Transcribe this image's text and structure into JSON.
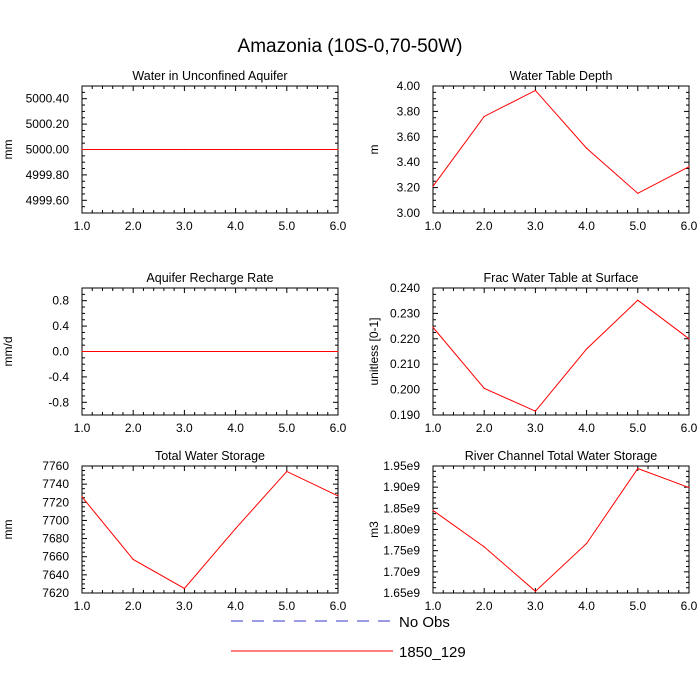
{
  "title": "Amazonia (10S-0,70-50W)",
  "chart_data": [
    {
      "type": "line",
      "title": "Water in Unconfined Aquifer",
      "ylabel": "mm",
      "xlim": [
        1.0,
        6.0
      ],
      "ylim": [
        4999.5,
        5000.5
      ],
      "xticks": [
        "1.0",
        "2.0",
        "3.0",
        "4.0",
        "5.0",
        "6.0"
      ],
      "yticks": [
        {
          "v": 4999.6,
          "label": "4999.60"
        },
        {
          "v": 4999.8,
          "label": "4999.80"
        },
        {
          "v": 5000.0,
          "label": "5000.00"
        },
        {
          "v": 5000.2,
          "label": "5000.20"
        },
        {
          "v": 5000.4,
          "label": "5000.40"
        }
      ],
      "x": [
        1,
        2,
        3,
        4,
        5,
        6
      ],
      "series": [
        {
          "name": "1850_129",
          "values": [
            5000.0,
            5000.0,
            5000.0,
            5000.0,
            5000.0,
            5000.0
          ]
        }
      ]
    },
    {
      "type": "line",
      "title": "Water Table Depth",
      "ylabel": "m",
      "xlim": [
        1.0,
        6.0
      ],
      "ylim": [
        3.0,
        4.0
      ],
      "xticks": [
        "1.0",
        "2.0",
        "3.0",
        "4.0",
        "5.0",
        "6.0"
      ],
      "yticks": [
        {
          "v": 3.0,
          "label": "3.00"
        },
        {
          "v": 3.2,
          "label": "3.20"
        },
        {
          "v": 3.4,
          "label": "3.40"
        },
        {
          "v": 3.6,
          "label": "3.60"
        },
        {
          "v": 3.8,
          "label": "3.80"
        },
        {
          "v": 4.0,
          "label": "4.00"
        }
      ],
      "x": [
        1,
        2,
        3,
        4,
        5,
        6
      ],
      "series": [
        {
          "name": "1850_129",
          "values": [
            3.21,
            3.76,
            3.965,
            3.51,
            3.155,
            3.365
          ]
        }
      ]
    },
    {
      "type": "line",
      "title": "Aquifer Recharge Rate",
      "ylabel": "mm/d",
      "xlim": [
        1.0,
        6.0
      ],
      "ylim": [
        -1.0,
        1.0
      ],
      "xticks": [
        "1.0",
        "2.0",
        "3.0",
        "4.0",
        "5.0",
        "6.0"
      ],
      "yticks": [
        {
          "v": -0.8,
          "label": "-0.8"
        },
        {
          "v": -0.4,
          "label": "-0.4"
        },
        {
          "v": 0.0,
          "label": "0.0"
        },
        {
          "v": 0.4,
          "label": "0.4"
        },
        {
          "v": 0.8,
          "label": "0.8"
        }
      ],
      "x": [
        1,
        2,
        3,
        4,
        5,
        6
      ],
      "series": [
        {
          "name": "1850_129",
          "values": [
            0.0,
            0.0,
            0.0,
            0.0,
            0.0,
            0.0
          ]
        }
      ]
    },
    {
      "type": "line",
      "title": "Frac Water Table at Surface",
      "ylabel": "unitless [0-1]",
      "xlim": [
        1.0,
        6.0
      ],
      "ylim": [
        0.19,
        0.24
      ],
      "xticks": [
        "1.0",
        "2.0",
        "3.0",
        "4.0",
        "5.0",
        "6.0"
      ],
      "yticks": [
        {
          "v": 0.19,
          "label": "0.190"
        },
        {
          "v": 0.2,
          "label": "0.200"
        },
        {
          "v": 0.21,
          "label": "0.210"
        },
        {
          "v": 0.22,
          "label": "0.220"
        },
        {
          "v": 0.23,
          "label": "0.230"
        },
        {
          "v": 0.24,
          "label": "0.240"
        }
      ],
      "x": [
        1,
        2,
        3,
        4,
        5,
        6
      ],
      "series": [
        {
          "name": "1850_129",
          "values": [
            0.2245,
            0.2005,
            0.1915,
            0.216,
            0.2352,
            0.22
          ]
        }
      ]
    },
    {
      "type": "line",
      "title": "Total Water Storage",
      "ylabel": "mm",
      "xlim": [
        1.0,
        6.0
      ],
      "ylim": [
        7620,
        7760
      ],
      "xticks": [
        "1.0",
        "2.0",
        "3.0",
        "4.0",
        "5.0",
        "6.0"
      ],
      "yticks": [
        {
          "v": 7620,
          "label": "7620"
        },
        {
          "v": 7640,
          "label": "7640"
        },
        {
          "v": 7660,
          "label": "7660"
        },
        {
          "v": 7680,
          "label": "7680"
        },
        {
          "v": 7700,
          "label": "7700"
        },
        {
          "v": 7720,
          "label": "7720"
        },
        {
          "v": 7740,
          "label": "7740"
        },
        {
          "v": 7760,
          "label": "7760"
        }
      ],
      "x": [
        1,
        2,
        3,
        4,
        5,
        6
      ],
      "series": [
        {
          "name": "1850_129",
          "values": [
            7726,
            7657,
            7625,
            7691,
            7754,
            7727
          ]
        }
      ]
    },
    {
      "type": "line",
      "title": "River Channel Total Water Storage",
      "ylabel": "m3",
      "xlim": [
        1.0,
        6.0
      ],
      "ylim": [
        1650000000.0,
        1950000000.0
      ],
      "xticks": [
        "1.0",
        "2.0",
        "3.0",
        "4.0",
        "5.0",
        "6.0"
      ],
      "yticks": [
        {
          "v": 1650000000.0,
          "label": "1.65e9"
        },
        {
          "v": 1700000000.0,
          "label": "1.70e9"
        },
        {
          "v": 1750000000.0,
          "label": "1.75e9"
        },
        {
          "v": 1800000000.0,
          "label": "1.80e9"
        },
        {
          "v": 1850000000.0,
          "label": "1.85e9"
        },
        {
          "v": 1900000000.0,
          "label": "1.90e9"
        },
        {
          "v": 1950000000.0,
          "label": "1.95e9"
        }
      ],
      "x": [
        1,
        2,
        3,
        4,
        5,
        6
      ],
      "series": [
        {
          "name": "1850_129",
          "values": [
            1845000000.0,
            1759000000.0,
            1654000000.0,
            1767000000.0,
            1944000000.0,
            1899000000.0
          ]
        }
      ]
    }
  ],
  "legend": {
    "items": [
      {
        "label": "No Obs",
        "color": "#3333cc",
        "style": "dashed"
      },
      {
        "label": "1850_129",
        "color": "#ff0000",
        "style": "solid"
      }
    ]
  },
  "colors": {
    "series": "#ff0000",
    "axis": "#000000"
  }
}
